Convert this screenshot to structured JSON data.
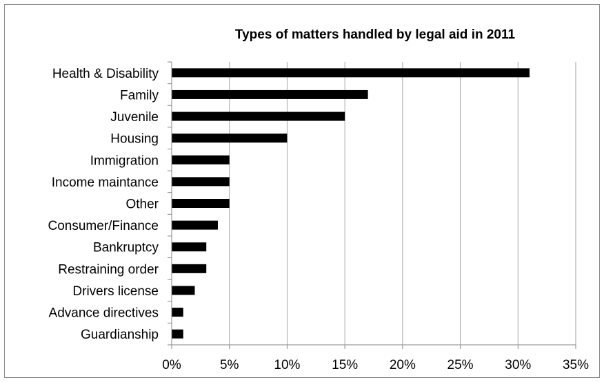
{
  "chart_data": {
    "type": "bar",
    "orientation": "horizontal",
    "title": "Types of matters handled by legal aid in 2011",
    "xlabel": "",
    "ylabel": "",
    "categories": [
      "Health & Disability",
      "Family",
      "Juvenile",
      "Housing",
      "Immigration",
      "Income maintance",
      "Other",
      "Consumer/Finance",
      "Bankruptcy",
      "Restraining order",
      "Drivers license",
      "Advance directives",
      "Guardianship"
    ],
    "values": [
      31,
      17,
      15,
      10,
      5,
      5,
      5,
      4,
      3,
      3,
      2,
      1,
      1
    ],
    "value_unit": "%",
    "xlim": [
      0,
      35
    ],
    "x_ticks": [
      0,
      5,
      10,
      15,
      20,
      25,
      30,
      35
    ],
    "x_tick_labels": [
      "0%",
      "5%",
      "10%",
      "15%",
      "20%",
      "25%",
      "30%",
      "35%"
    ],
    "grid": "vertical",
    "legend": "none",
    "bar_color": "#000000",
    "grid_color": "#a6a6a6"
  }
}
